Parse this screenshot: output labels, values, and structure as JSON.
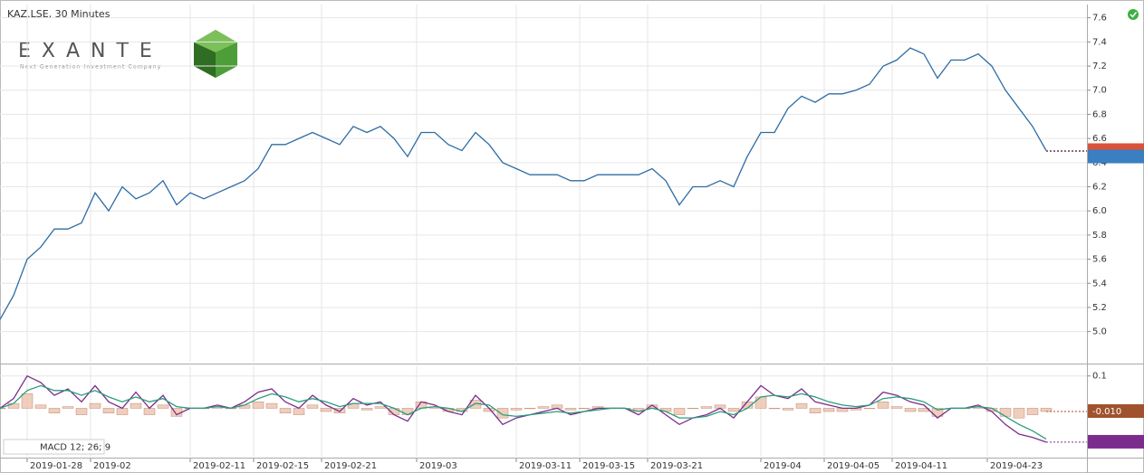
{
  "chart_data": {
    "type": "line",
    "title": "KAZ.LSE, 30 Minutes",
    "logo": {
      "title": "EXANTE",
      "tagline": "Next Generation Investment Company"
    },
    "grid": true,
    "x": [
      0,
      3,
      6,
      9,
      12,
      15,
      18,
      21,
      24,
      27,
      30,
      33,
      36,
      39,
      42,
      45,
      48,
      51,
      54,
      57,
      60,
      63,
      66,
      69,
      72,
      75,
      78,
      81,
      84,
      87,
      90,
      93,
      96,
      99,
      102,
      105,
      108,
      111,
      114,
      117,
      120,
      123,
      126,
      129,
      132,
      135,
      138,
      141,
      144,
      147,
      150,
      153,
      156,
      159,
      162,
      165,
      168,
      171,
      174,
      177,
      180,
      183,
      186,
      189,
      192,
      195,
      198,
      201,
      204,
      207,
      210,
      213,
      216,
      219,
      222,
      225,
      228,
      231
    ],
    "xlim": [
      0,
      240
    ],
    "xticks": [
      {
        "value": 6,
        "label": "2019-01-28"
      },
      {
        "value": 20,
        "label": "2019-02"
      },
      {
        "value": 42,
        "label": "2019-02-11"
      },
      {
        "value": 56,
        "label": "2019-02-15"
      },
      {
        "value": 71,
        "label": "2019-02-21"
      },
      {
        "value": 92,
        "label": "2019-03"
      },
      {
        "value": 114,
        "label": "2019-03-11"
      },
      {
        "value": 128,
        "label": "2019-03-15"
      },
      {
        "value": 143,
        "label": "2019-03-21"
      },
      {
        "value": 168,
        "label": "2019-04"
      },
      {
        "value": 182,
        "label": "2019-04-05"
      },
      {
        "value": 197,
        "label": "2019-04-11"
      },
      {
        "value": 218,
        "label": "2019-04-23"
      }
    ],
    "ylim": [
      4.75,
      7.71
    ],
    "yticks": [
      {
        "value": 5,
        "label": "5.0"
      },
      5.2,
      5.4,
      5.6,
      5.8,
      {
        "value": 6,
        "label": "6.0"
      },
      6.2,
      6.4,
      6.6,
      6.8,
      {
        "value": 7,
        "label": "7.0"
      },
      7.2,
      7.4,
      7.6
    ],
    "series": [
      {
        "name": "KAZ.LSE",
        "color": "#2e6da4",
        "values": [
          5.1,
          5.3,
          5.6,
          5.7,
          5.85,
          5.85,
          5.9,
          6.15,
          6.0,
          6.2,
          6.1,
          6.15,
          6.25,
          6.05,
          6.15,
          6.1,
          6.15,
          6.2,
          6.25,
          6.35,
          6.55,
          6.55,
          6.6,
          6.65,
          6.6,
          6.55,
          6.7,
          6.65,
          6.7,
          6.6,
          6.45,
          6.65,
          6.65,
          6.55,
          6.5,
          6.65,
          6.55,
          6.4,
          6.35,
          6.3,
          6.3,
          6.3,
          6.25,
          6.25,
          6.3,
          6.3,
          6.3,
          6.3,
          6.35,
          6.25,
          6.05,
          6.2,
          6.2,
          6.25,
          6.2,
          6.45,
          6.65,
          6.65,
          6.85,
          6.95,
          6.9,
          6.97,
          6.97,
          7.0,
          7.05,
          7.2,
          7.25,
          7.35,
          7.3,
          7.1,
          7.25,
          7.25,
          7.3,
          7.2,
          7.0,
          6.85,
          6.7,
          6.5
        ]
      }
    ],
    "markers": [
      {
        "value": 6.5,
        "color": "#d9533a"
      },
      {
        "value": 6.492,
        "color": "#3a7fc1"
      }
    ],
    "indicator": {
      "name": "MACD 12; 26; 9",
      "ylim": [
        -0.15,
        0.13
      ],
      "yticks": [
        0.1
      ],
      "series": [
        {
          "type": "line",
          "color": "#7b2d8e",
          "values": [
            0,
            0.03,
            0.1,
            0.08,
            0.04,
            0.06,
            0.02,
            0.07,
            0.02,
            0,
            0.05,
            0,
            0.04,
            -0.02,
            0,
            0,
            0.01,
            0,
            0.02,
            0.05,
            0.06,
            0.02,
            0,
            0.04,
            0.01,
            -0.01,
            0.03,
            0.01,
            0.02,
            -0.02,
            -0.04,
            0.02,
            0.01,
            -0.01,
            -0.02,
            0.04,
            0,
            -0.05,
            -0.03,
            -0.02,
            -0.01,
            0,
            -0.02,
            -0.01,
            0,
            0,
            0,
            -0.02,
            0.01,
            -0.02,
            -0.05,
            -0.03,
            -0.02,
            0,
            -0.03,
            0.02,
            0.07,
            0.04,
            0.03,
            0.06,
            0.02,
            0.01,
            0,
            0,
            0.01,
            0.05,
            0.04,
            0.02,
            0.01,
            -0.03,
            0,
            0,
            0.01,
            -0.01,
            -0.05,
            -0.08,
            -0.09,
            -0.105
          ]
        },
        {
          "type": "line",
          "color": "#2a9d7a",
          "values": [
            0,
            0.015,
            0.055,
            0.07,
            0.055,
            0.055,
            0.04,
            0.055,
            0.035,
            0.02,
            0.035,
            0.02,
            0.03,
            0.005,
            0,
            0,
            0.005,
            0,
            0.01,
            0.03,
            0.045,
            0.035,
            0.02,
            0.03,
            0.02,
            0.005,
            0.015,
            0.015,
            0.015,
            0,
            -0.02,
            0,
            0.005,
            0,
            -0.01,
            0.015,
            0.01,
            -0.02,
            -0.025,
            -0.02,
            -0.015,
            -0.01,
            -0.015,
            -0.01,
            -0.005,
            0,
            0,
            -0.01,
            0,
            -0.01,
            -0.03,
            -0.03,
            -0.025,
            -0.01,
            -0.02,
            0,
            0.035,
            0.04,
            0.035,
            0.045,
            0.035,
            0.02,
            0.01,
            0.005,
            0.01,
            0.03,
            0.035,
            0.03,
            0.02,
            -0.005,
            0,
            0,
            0.005,
            0,
            -0.025,
            -0.05,
            -0.07,
            -0.095
          ]
        },
        {
          "type": "bar",
          "color": "#a0522d",
          "values": [
            0,
            0.015,
            0.045,
            0.01,
            -0.015,
            0.005,
            -0.02,
            0.015,
            -0.015,
            -0.02,
            0.015,
            -0.02,
            0.01,
            -0.025,
            0,
            0,
            0.005,
            0,
            0.01,
            0.02,
            0.015,
            -0.015,
            -0.02,
            0.01,
            -0.01,
            -0.015,
            0.015,
            -0.005,
            0.005,
            -0.02,
            -0.02,
            0.02,
            0.005,
            -0.01,
            -0.01,
            0.025,
            -0.01,
            -0.03,
            -0.005,
            0,
            0.005,
            0.01,
            -0.005,
            0,
            0.005,
            0,
            0,
            -0.01,
            0.01,
            -0.01,
            -0.02,
            0,
            0.005,
            0.01,
            -0.01,
            0.02,
            0.035,
            0,
            -0.005,
            0.015,
            -0.015,
            -0.01,
            -0.01,
            -0.005,
            0,
            0.02,
            0.005,
            -0.01,
            -0.01,
            -0.025,
            0,
            0,
            0.005,
            -0.01,
            -0.025,
            -0.03,
            -0.02,
            -0.01
          ]
        }
      ],
      "markers": [
        {
          "value": -0.01,
          "label": "-0.010",
          "color": "#a0522d"
        },
        {
          "value": -0.105,
          "color": "#7b2d8e"
        }
      ]
    }
  }
}
